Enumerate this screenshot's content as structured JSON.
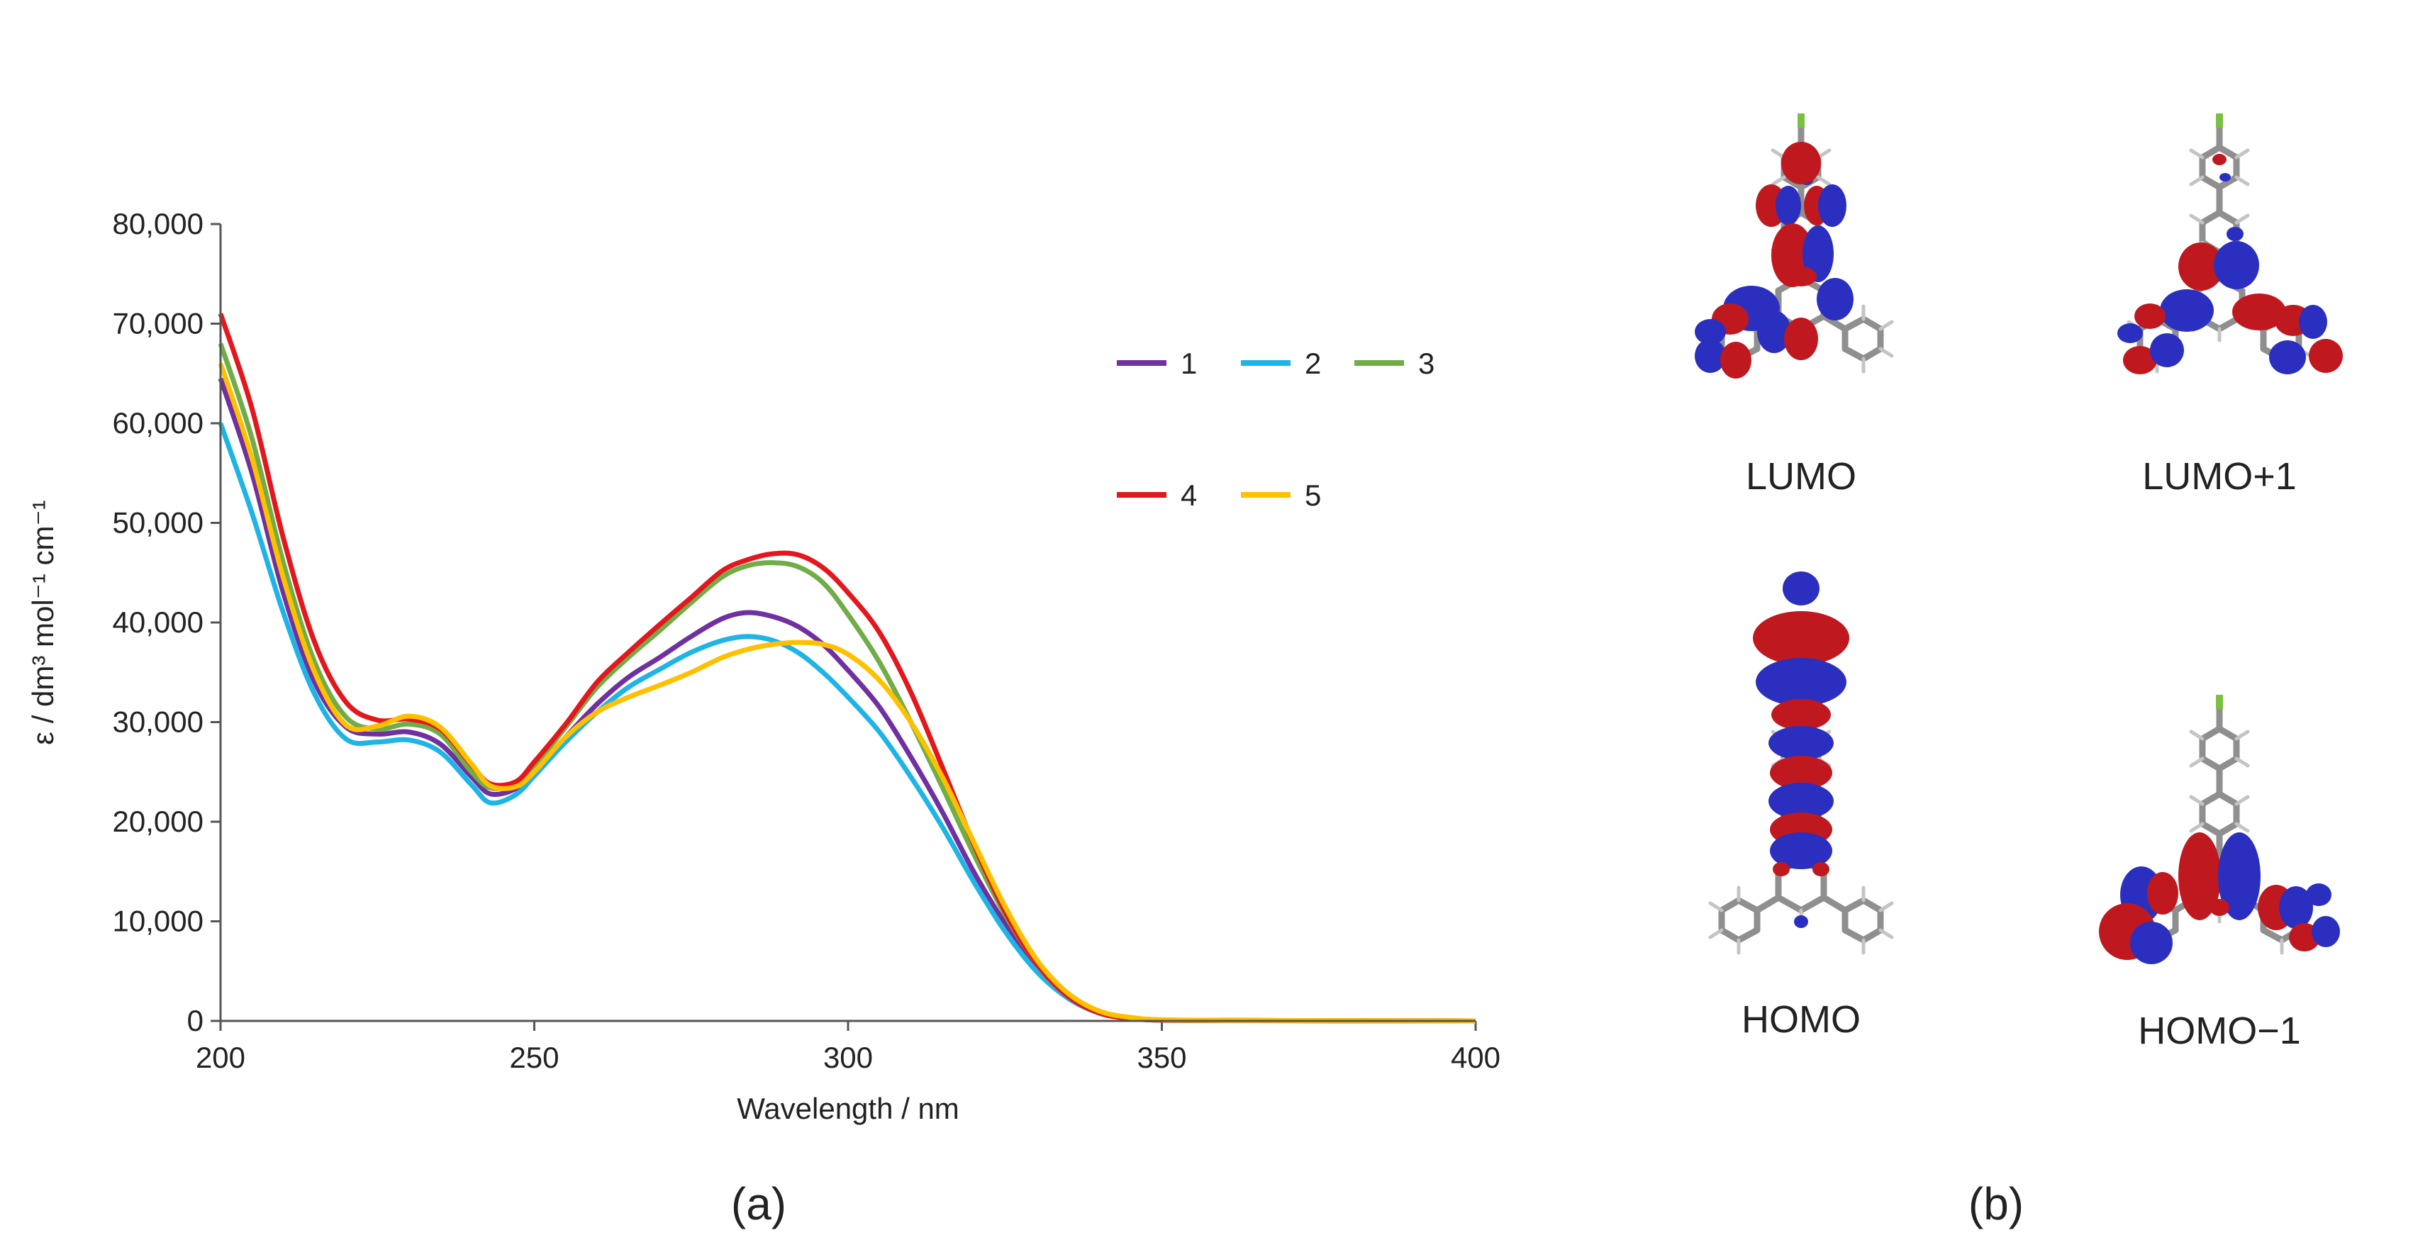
{
  "chart_data": {
    "type": "line",
    "title": "",
    "xlabel": "Wavelength / nm",
    "ylabel": "ε / dm³ mol⁻¹ cm⁻¹",
    "xlim": [
      200,
      400
    ],
    "ylim": [
      0,
      80000
    ],
    "xticks": [
      "200",
      "250",
      "300",
      "350",
      "400"
    ],
    "yticks": [
      "0",
      "10,000",
      "20,000",
      "30,000",
      "40,000",
      "50,000",
      "60,000",
      "70,000",
      "80,000"
    ],
    "grid": false,
    "legend_position": "top-right",
    "series": [
      {
        "name": "1",
        "color": "#7030a0",
        "x": [
          200,
          205,
          210,
          215,
          220,
          225,
          230,
          235,
          240,
          243,
          247,
          250,
          255,
          260,
          265,
          270,
          275,
          280,
          284,
          288,
          292,
          296,
          300,
          305,
          310,
          315,
          320,
          325,
          330,
          335,
          340,
          345,
          350,
          360,
          380,
          400
        ],
        "y": [
          64500,
          55000,
          43000,
          34000,
          29500,
          28800,
          29000,
          27800,
          24500,
          22800,
          23300,
          25000,
          28500,
          31800,
          34500,
          36500,
          38600,
          40400,
          41000,
          40600,
          39600,
          37800,
          35200,
          31500,
          26500,
          21000,
          15000,
          9800,
          5500,
          2600,
          900,
          300,
          100,
          50,
          20,
          0
        ]
      },
      {
        "name": "2",
        "color": "#1fb4e6",
        "x": [
          200,
          205,
          210,
          215,
          220,
          225,
          230,
          235,
          240,
          243,
          247,
          250,
          255,
          260,
          265,
          270,
          275,
          280,
          284,
          288,
          292,
          296,
          300,
          305,
          310,
          315,
          320,
          325,
          330,
          335,
          340,
          345,
          350,
          360,
          380,
          400
        ],
        "y": [
          60000,
          51000,
          41000,
          32800,
          28300,
          28000,
          28200,
          27000,
          23700,
          21900,
          22700,
          24600,
          28000,
          31000,
          33500,
          35300,
          37000,
          38200,
          38600,
          38200,
          37000,
          35000,
          32500,
          29000,
          24500,
          19500,
          14000,
          9000,
          5000,
          2300,
          800,
          250,
          80,
          40,
          20,
          0
        ]
      },
      {
        "name": "3",
        "color": "#70ad47",
        "x": [
          200,
          205,
          210,
          215,
          220,
          225,
          230,
          235,
          240,
          243,
          247,
          250,
          255,
          260,
          265,
          270,
          275,
          280,
          284,
          288,
          292,
          296,
          300,
          305,
          310,
          315,
          320,
          325,
          330,
          335,
          340,
          345,
          350,
          360,
          380,
          400
        ],
        "y": [
          68000,
          58500,
          46000,
          36000,
          30500,
          29300,
          29800,
          28800,
          25000,
          23400,
          23800,
          25600,
          29500,
          33500,
          36500,
          39200,
          42000,
          44600,
          45700,
          46000,
          45600,
          44000,
          40800,
          36000,
          30000,
          23500,
          16800,
          10700,
          5800,
          2700,
          900,
          300,
          100,
          50,
          20,
          0
        ]
      },
      {
        "name": "4",
        "color": "#e3171d",
        "x": [
          200,
          205,
          210,
          215,
          220,
          225,
          230,
          235,
          240,
          243,
          247,
          250,
          255,
          260,
          265,
          270,
          275,
          280,
          284,
          288,
          292,
          296,
          300,
          305,
          310,
          315,
          320,
          325,
          330,
          335,
          340,
          345,
          350,
          360,
          380,
          400
        ],
        "y": [
          71000,
          61500,
          48500,
          38000,
          32000,
          30200,
          30300,
          29300,
          25700,
          23800,
          24000,
          26000,
          29800,
          34000,
          37000,
          39800,
          42500,
          45200,
          46300,
          46900,
          46800,
          45500,
          43000,
          39000,
          33000,
          25500,
          17800,
          11000,
          5800,
          2500,
          800,
          250,
          80,
          40,
          20,
          0
        ]
      },
      {
        "name": "5",
        "color": "#ffc000",
        "x": [
          200,
          205,
          210,
          215,
          220,
          225,
          230,
          235,
          240,
          243,
          247,
          250,
          255,
          260,
          265,
          270,
          275,
          280,
          284,
          288,
          292,
          296,
          300,
          305,
          310,
          315,
          320,
          325,
          330,
          335,
          340,
          345,
          350,
          360,
          380,
          400
        ],
        "y": [
          66000,
          56500,
          44500,
          35000,
          29700,
          29600,
          30600,
          29500,
          25800,
          23600,
          23500,
          25000,
          28500,
          31000,
          32500,
          33700,
          35000,
          36500,
          37300,
          37800,
          38000,
          37800,
          36800,
          34200,
          30000,
          24500,
          18000,
          11500,
          6200,
          2800,
          1000,
          350,
          120,
          60,
          30,
          0
        ]
      }
    ]
  },
  "panel_labels": {
    "a": "(a)",
    "b": "(b)"
  },
  "orbitals": {
    "lumo": "LUMO",
    "lumo_plus_1": "LUMO+1",
    "homo": "HOMO",
    "homo_minus_1": "HOMO−1"
  },
  "colors": {
    "lobe_positive": "#c0181f",
    "lobe_negative": "#2b2fbf",
    "bond": "#8f8f8f",
    "fluorine": "#7ac143"
  }
}
